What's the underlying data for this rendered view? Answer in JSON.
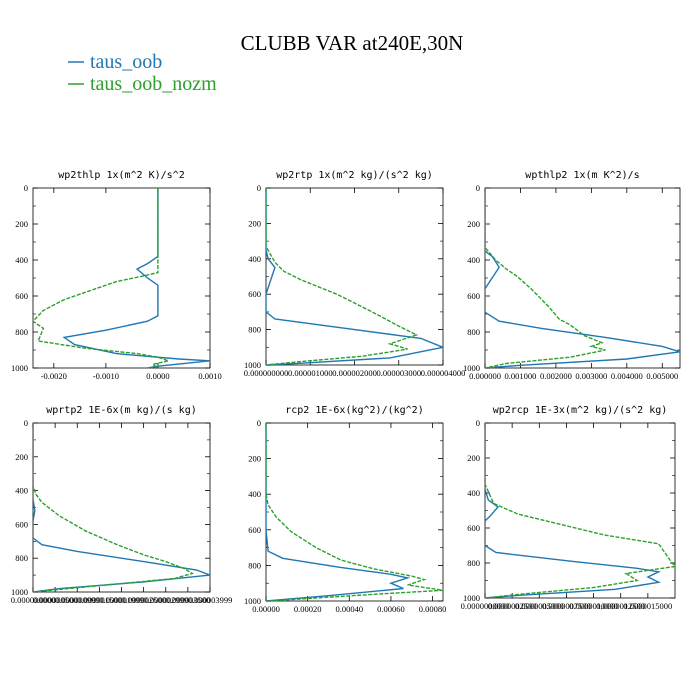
{
  "figure_title": "CLUBB VAR at240E,30N",
  "legend": [
    {
      "label": "taus_oob",
      "color": "#1f77b4"
    },
    {
      "label": "taus_oob_nozm",
      "color": "#2ca02c"
    }
  ],
  "chart_data": [
    {
      "type": "line",
      "title": "wp2thlp  1x(m^2 K)/s^2",
      "xlim": [
        -0.0024,
        0.001
      ],
      "ylim": [
        1000,
        0
      ],
      "xticks": [
        -0.002,
        -0.001,
        0.0,
        0.001
      ],
      "xtick_labels": [
        "-0.0020",
        "-0.0010",
        "0.0000",
        "0.0010"
      ],
      "yticks": [
        0,
        200,
        400,
        600,
        800,
        1000
      ],
      "series": [
        {
          "name": "taus_oob",
          "color": "#1f77b4",
          "points": [
            [
              0.0,
              0
            ],
            [
              0.0,
              380
            ],
            [
              -0.0002,
              420
            ],
            [
              -0.0004,
              450
            ],
            [
              -0.0002,
              500
            ],
            [
              0.0,
              540
            ],
            [
              0.0,
              710
            ],
            [
              -0.0002,
              740
            ],
            [
              -0.001,
              790
            ],
            [
              -0.0018,
              830
            ],
            [
              -0.0016,
              870
            ],
            [
              -0.0008,
              920
            ],
            [
              0.0004,
              950
            ],
            [
              0.001,
              960
            ],
            [
              0.0,
              990
            ],
            [
              -0.0002,
              1000
            ]
          ]
        },
        {
          "name": "taus_oob_nozm",
          "color": "#2ca02c",
          "points": [
            [
              0.0,
              0
            ],
            [
              0.0,
              470
            ],
            [
              -0.0003,
              490
            ],
            [
              -0.0008,
              520
            ],
            [
              -0.0013,
              570
            ],
            [
              -0.0018,
              620
            ],
            [
              -0.0022,
              680
            ],
            [
              -0.0024,
              740
            ],
            [
              -0.0022,
              780
            ],
            [
              -0.0023,
              850
            ],
            [
              -0.0014,
              890
            ],
            [
              -0.0004,
              920
            ],
            [
              0.0,
              940
            ],
            [
              0.0002,
              960
            ],
            [
              -0.0001,
              980
            ],
            [
              0.0,
              1000
            ]
          ]
        }
      ]
    },
    {
      "type": "line",
      "title": "wp2rtp  1x(m^2 kg)/(s^2 kg)",
      "xlim": [
        0.0,
        4e-06
      ],
      "ylim": [
        1000,
        0
      ],
      "xticks": [
        0.0,
        1e-06,
        2e-06,
        3e-06,
        4e-06
      ],
      "xtick_labels": [
        "0.000000000",
        "0.000001000",
        "0.000002000",
        "0.000003000",
        "0.000004000"
      ],
      "yticks": [
        0,
        200,
        400,
        600,
        800,
        1000
      ],
      "series": [
        {
          "name": "taus_oob",
          "color": "#1f77b4",
          "points": [
            [
              0.0,
              0
            ],
            [
              0.0,
              350
            ],
            [
              5e-08,
              400
            ],
            [
              2e-07,
              450
            ],
            [
              8e-08,
              540
            ],
            [
              0.0,
              600
            ],
            [
              0.0,
              700
            ],
            [
              2e-07,
              740
            ],
            [
              2e-06,
              800
            ],
            [
              3.5e-06,
              850
            ],
            [
              4e-06,
              900
            ],
            [
              2.8e-06,
              960
            ],
            [
              8e-07,
              990
            ],
            [
              0.0,
              1000
            ]
          ]
        },
        {
          "name": "taus_oob_nozm",
          "color": "#2ca02c",
          "points": [
            [
              0.0,
              0
            ],
            [
              0.0,
              330
            ],
            [
              2e-07,
              420
            ],
            [
              4e-07,
              470
            ],
            [
              8e-07,
              520
            ],
            [
              1.6e-06,
              600
            ],
            [
              2.4e-06,
              700
            ],
            [
              3e-06,
              780
            ],
            [
              3.4e-06,
              830
            ],
            [
              2.8e-06,
              880
            ],
            [
              3.2e-06,
              910
            ],
            [
              2.2e-06,
              950
            ],
            [
              6e-07,
              985
            ],
            [
              0.0,
              1000
            ]
          ]
        }
      ]
    },
    {
      "type": "line",
      "title": "wpthlp2  1x(m K^2)/s",
      "xlim": [
        0.0,
        0.0055
      ],
      "ylim": [
        1000,
        0
      ],
      "xticks": [
        0.0,
        0.001,
        0.002,
        0.003,
        0.004,
        0.005
      ],
      "xtick_labels": [
        "0.000000",
        "0.001000",
        "0.002000",
        "0.003000",
        "0.004000",
        "0.005000"
      ],
      "yticks": [
        0,
        200,
        400,
        600,
        800,
        1000
      ],
      "series": [
        {
          "name": "taus_oob",
          "color": "#1f77b4",
          "points": [
            [
              0.0,
              0
            ],
            [
              0.0,
              350
            ],
            [
              0.0002,
              380
            ],
            [
              0.0004,
              440
            ],
            [
              0.0002,
              500
            ],
            [
              0.0,
              560
            ],
            [
              0.0,
              690
            ],
            [
              0.0004,
              740
            ],
            [
              0.0016,
              780
            ],
            [
              0.0034,
              830
            ],
            [
              0.005,
              880
            ],
            [
              0.0055,
              910
            ],
            [
              0.004,
              950
            ],
            [
              0.001,
              985
            ],
            [
              0.0,
              1000
            ]
          ]
        },
        {
          "name": "taus_oob_nozm",
          "color": "#2ca02c",
          "points": [
            [
              0.0,
              0
            ],
            [
              0.0,
              330
            ],
            [
              0.0003,
              400
            ],
            [
              0.0006,
              450
            ],
            [
              0.0009,
              490
            ],
            [
              0.0013,
              560
            ],
            [
              0.0018,
              660
            ],
            [
              0.0021,
              730
            ],
            [
              0.0024,
              760
            ],
            [
              0.0028,
              820
            ],
            [
              0.0033,
              860
            ],
            [
              0.003,
              880
            ],
            [
              0.0034,
              900
            ],
            [
              0.0024,
              940
            ],
            [
              0.0006,
              975
            ],
            [
              0.0,
              1000
            ]
          ]
        }
      ]
    },
    {
      "type": "line",
      "title": "wprtp2  1E-6x(m kg)/(s kg)",
      "xlim": [
        0.0,
        4e-06
      ],
      "ylim": [
        1000,
        0
      ],
      "xticks": [
        0.0,
        5e-07,
        1e-06,
        1.5e-06,
        2e-06,
        2.5e-06,
        3e-06,
        3.5e-06,
        4e-06
      ],
      "xtick_labels": [
        "0.000000000",
        "0.000000500",
        "0.000000999",
        "0.000001500",
        "0.000001999",
        "0.000002500",
        "0.000002999",
        "0.000003500",
        "0.000003999"
      ],
      "yticks": [
        0,
        200,
        400,
        600,
        800,
        1000
      ],
      "series": [
        {
          "name": "taus_oob",
          "color": "#1f77b4",
          "points": [
            [
              0.0,
              0
            ],
            [
              0.0,
              450
            ],
            [
              4e-08,
              520
            ],
            [
              0.0,
              580
            ],
            [
              0.0,
              680
            ],
            [
              2e-07,
              720
            ],
            [
              1e-06,
              760
            ],
            [
              2.5e-06,
              820
            ],
            [
              3.7e-06,
              870
            ],
            [
              4e-06,
              900
            ],
            [
              2.5e-06,
              940
            ],
            [
              6e-07,
              980
            ],
            [
              0.0,
              1000
            ]
          ]
        },
        {
          "name": "taus_oob_nozm",
          "color": "#2ca02c",
          "points": [
            [
              0.0,
              0
            ],
            [
              0.0,
              370
            ],
            [
              6e-08,
              420
            ],
            [
              2e-07,
              470
            ],
            [
              6e-07,
              550
            ],
            [
              1.2e-06,
              640
            ],
            [
              1.9e-06,
              720
            ],
            [
              2.5e-06,
              780
            ],
            [
              3e-06,
              820
            ],
            [
              3.4e-06,
              860
            ],
            [
              3.6e-06,
              890
            ],
            [
              3.2e-06,
              920
            ],
            [
              1.6e-06,
              960
            ],
            [
              4e-07,
              990
            ],
            [
              0.0,
              1000
            ]
          ]
        }
      ]
    },
    {
      "type": "line",
      "title": "rcp2  1E-6x(kg^2)/(kg^2)",
      "xlim": [
        0.0,
        0.00085
      ],
      "ylim": [
        1000,
        0
      ],
      "xticks": [
        0.0,
        0.0002,
        0.0004,
        0.0006,
        0.0008
      ],
      "xtick_labels": [
        "0.00000",
        "0.00020",
        "0.00040",
        "0.00060",
        "0.00080"
      ],
      "yticks": [
        0,
        200,
        400,
        600,
        800,
        1000
      ],
      "series": [
        {
          "name": "taus_oob",
          "color": "#1f77b4",
          "points": [
            [
              0.0,
              0
            ],
            [
              0.0,
              600
            ],
            [
              1e-05,
              720
            ],
            [
              8e-05,
              760
            ],
            [
              0.00035,
              810
            ],
            [
              0.0006,
              850
            ],
            [
              0.00068,
              870
            ],
            [
              0.0006,
              900
            ],
            [
              0.00066,
              930
            ],
            [
              0.0003,
              970
            ],
            [
              5e-05,
              995
            ],
            [
              0.0,
              1000
            ]
          ]
        },
        {
          "name": "taus_oob_nozm",
          "color": "#2ca02c",
          "points": [
            [
              0.0,
              0
            ],
            [
              0.0,
              400
            ],
            [
              1e-05,
              460
            ],
            [
              5e-05,
              530
            ],
            [
              0.00012,
              610
            ],
            [
              0.00024,
              700
            ],
            [
              0.00036,
              770
            ],
            [
              0.00052,
              820
            ],
            [
              0.0007,
              860
            ],
            [
              0.00076,
              880
            ],
            [
              0.00068,
              910
            ],
            [
              0.00085,
              940
            ],
            [
              0.00055,
              960
            ],
            [
              0.00015,
              990
            ],
            [
              0.0,
              1000
            ]
          ]
        }
      ]
    },
    {
      "type": "line",
      "title": "wp2rcp  1E-3x(m^2 kg)/(s^2 kg)",
      "xlim": [
        0.0,
        1.75e-06
      ],
      "ylim": [
        1000,
        0
      ],
      "xticks": [
        0.0,
        2.5e-07,
        5e-07,
        7.5e-07,
        1e-06,
        1.25e-06,
        1.5e-06
      ],
      "xtick_labels": [
        "0.0000000000",
        "0.0000002500",
        "0.0000005000",
        "0.0000007500",
        "0.0000010000",
        "0.0000012500",
        "0.0000015000"
      ],
      "yticks": [
        0,
        200,
        400,
        600,
        800,
        1000
      ],
      "series": [
        {
          "name": "taus_oob",
          "color": "#1f77b4",
          "points": [
            [
              0.0,
              0
            ],
            [
              0.0,
              380
            ],
            [
              3e-08,
              440
            ],
            [
              1.2e-07,
              480
            ],
            [
              5e-08,
              530
            ],
            [
              0.0,
              560
            ],
            [
              0.0,
              700
            ],
            [
              1e-07,
              740
            ],
            [
              8e-07,
              790
            ],
            [
              1.4e-06,
              830
            ],
            [
              1.6e-06,
              850
            ],
            [
              1.5e-06,
              880
            ],
            [
              1.6e-06,
              910
            ],
            [
              1.2e-06,
              950
            ],
            [
              3e-07,
              985
            ],
            [
              0.0,
              1000
            ]
          ]
        },
        {
          "name": "taus_oob_nozm",
          "color": "#2ca02c",
          "points": [
            [
              0.0,
              0
            ],
            [
              0.0,
              350
            ],
            [
              8e-08,
              460
            ],
            [
              3e-07,
              520
            ],
            [
              7e-07,
              580
            ],
            [
              1.1e-06,
              640
            ],
            [
              1.6e-06,
              690
            ],
            [
              1.7e-06,
              780
            ],
            [
              1.75e-06,
              820
            ],
            [
              1.3e-06,
              860
            ],
            [
              1.4e-06,
              900
            ],
            [
              1e-06,
              940
            ],
            [
              3e-07,
              980
            ],
            [
              0.0,
              1000
            ]
          ]
        }
      ]
    }
  ]
}
